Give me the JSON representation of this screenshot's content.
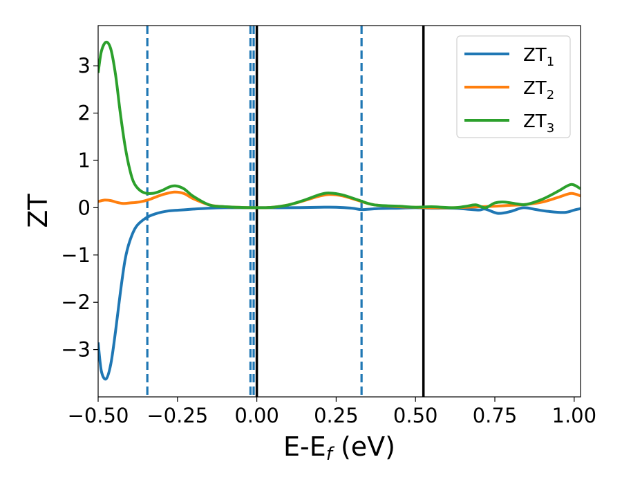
{
  "chart_data": {
    "type": "line",
    "xlabel": {
      "main": "E-E",
      "sub": "f",
      "unit": " (eV)"
    },
    "ylabel": "ZT",
    "xlim": [
      -0.5,
      1.02
    ],
    "ylim": [
      -4.0,
      3.85
    ],
    "x_ticks": [
      {
        "value": -0.5,
        "label": "−0.50"
      },
      {
        "value": -0.25,
        "label": "−0.25"
      },
      {
        "value": 0.0,
        "label": "0.00"
      },
      {
        "value": 0.25,
        "label": "0.25"
      },
      {
        "value": 0.5,
        "label": "0.50"
      },
      {
        "value": 0.75,
        "label": "0.75"
      },
      {
        "value": 1.0,
        "label": "1.00"
      }
    ],
    "y_ticks": [
      {
        "value": -3,
        "label": "−3"
      },
      {
        "value": -2,
        "label": "−2"
      },
      {
        "value": -1,
        "label": "−1"
      },
      {
        "value": 0,
        "label": "0"
      },
      {
        "value": 1,
        "label": "1"
      },
      {
        "value": 2,
        "label": "2"
      },
      {
        "value": 3,
        "label": "3"
      }
    ],
    "grid": false,
    "legend_position": "top-right",
    "vlines": [
      {
        "x": -0.345,
        "style": "dashed",
        "color": "#1f77b4"
      },
      {
        "x": -0.02,
        "style": "dashed",
        "color": "#1f77b4"
      },
      {
        "x": -0.01,
        "style": "dashed",
        "color": "#1f77b4"
      },
      {
        "x": 0.33,
        "style": "dashed",
        "color": "#1f77b4"
      },
      {
        "x": 0.0,
        "style": "solid",
        "color": "#000000"
      },
      {
        "x": 0.525,
        "style": "solid",
        "color": "#000000"
      }
    ],
    "series": [
      {
        "name": "ZT",
        "sub": "1",
        "color": "#1f77b4",
        "points": [
          [
            -0.5,
            -2.85
          ],
          [
            -0.49,
            -3.45
          ],
          [
            -0.475,
            -3.62
          ],
          [
            -0.46,
            -3.3
          ],
          [
            -0.445,
            -2.6
          ],
          [
            -0.43,
            -1.8
          ],
          [
            -0.415,
            -1.1
          ],
          [
            -0.4,
            -0.7
          ],
          [
            -0.38,
            -0.4
          ],
          [
            -0.35,
            -0.22
          ],
          [
            -0.32,
            -0.13
          ],
          [
            -0.28,
            -0.07
          ],
          [
            -0.24,
            -0.05
          ],
          [
            -0.2,
            -0.03
          ],
          [
            -0.15,
            -0.01
          ],
          [
            -0.1,
            0.0
          ],
          [
            0.0,
            0.0
          ],
          [
            0.1,
            0.0
          ],
          [
            0.2,
            0.01
          ],
          [
            0.25,
            0.01
          ],
          [
            0.3,
            -0.01
          ],
          [
            0.33,
            -0.04
          ],
          [
            0.38,
            -0.02
          ],
          [
            0.45,
            -0.01
          ],
          [
            0.5,
            0.0
          ],
          [
            0.55,
            -0.01
          ],
          [
            0.62,
            -0.01
          ],
          [
            0.66,
            -0.03
          ],
          [
            0.7,
            -0.05
          ],
          [
            0.72,
            -0.03
          ],
          [
            0.76,
            -0.12
          ],
          [
            0.8,
            -0.08
          ],
          [
            0.84,
            0.0
          ],
          [
            0.88,
            -0.04
          ],
          [
            0.92,
            -0.08
          ],
          [
            0.97,
            -0.1
          ],
          [
            1.0,
            -0.05
          ],
          [
            1.02,
            -0.02
          ]
        ]
      },
      {
        "name": "ZT",
        "sub": "2",
        "color": "#ff7f0e",
        "points": [
          [
            -0.5,
            0.13
          ],
          [
            -0.48,
            0.16
          ],
          [
            -0.46,
            0.15
          ],
          [
            -0.44,
            0.11
          ],
          [
            -0.42,
            0.09
          ],
          [
            -0.4,
            0.1
          ],
          [
            -0.37,
            0.12
          ],
          [
            -0.34,
            0.17
          ],
          [
            -0.3,
            0.27
          ],
          [
            -0.26,
            0.33
          ],
          [
            -0.23,
            0.3
          ],
          [
            -0.2,
            0.19
          ],
          [
            -0.15,
            0.06
          ],
          [
            -0.1,
            0.02
          ],
          [
            0.0,
            0.0
          ],
          [
            0.05,
            0.01
          ],
          [
            0.1,
            0.06
          ],
          [
            0.15,
            0.15
          ],
          [
            0.2,
            0.25
          ],
          [
            0.23,
            0.28
          ],
          [
            0.27,
            0.25
          ],
          [
            0.32,
            0.15
          ],
          [
            0.37,
            0.06
          ],
          [
            0.45,
            0.02
          ],
          [
            0.5,
            0.01
          ],
          [
            0.55,
            0.0
          ],
          [
            0.62,
            0.0
          ],
          [
            0.7,
            0.02
          ],
          [
            0.75,
            0.03
          ],
          [
            0.8,
            0.05
          ],
          [
            0.85,
            0.07
          ],
          [
            0.9,
            0.12
          ],
          [
            0.95,
            0.22
          ],
          [
            0.99,
            0.3
          ],
          [
            1.02,
            0.25
          ]
        ]
      },
      {
        "name": "ZT",
        "sub": "3",
        "color": "#2ca02c",
        "points": [
          [
            -0.5,
            2.85
          ],
          [
            -0.49,
            3.3
          ],
          [
            -0.475,
            3.5
          ],
          [
            -0.46,
            3.35
          ],
          [
            -0.445,
            2.8
          ],
          [
            -0.43,
            2.0
          ],
          [
            -0.415,
            1.3
          ],
          [
            -0.4,
            0.8
          ],
          [
            -0.385,
            0.5
          ],
          [
            -0.36,
            0.33
          ],
          [
            -0.33,
            0.3
          ],
          [
            -0.3,
            0.36
          ],
          [
            -0.275,
            0.44
          ],
          [
            -0.255,
            0.46
          ],
          [
            -0.23,
            0.4
          ],
          [
            -0.2,
            0.24
          ],
          [
            -0.15,
            0.06
          ],
          [
            -0.1,
            0.02
          ],
          [
            0.0,
            0.0
          ],
          [
            0.05,
            0.01
          ],
          [
            0.1,
            0.06
          ],
          [
            0.15,
            0.16
          ],
          [
            0.2,
            0.28
          ],
          [
            0.23,
            0.31
          ],
          [
            0.27,
            0.27
          ],
          [
            0.32,
            0.16
          ],
          [
            0.37,
            0.06
          ],
          [
            0.45,
            0.03
          ],
          [
            0.5,
            0.01
          ],
          [
            0.55,
            0.02
          ],
          [
            0.62,
            0.0
          ],
          [
            0.66,
            0.03
          ],
          [
            0.69,
            0.06
          ],
          [
            0.72,
            0.0
          ],
          [
            0.75,
            0.1
          ],
          [
            0.78,
            0.12
          ],
          [
            0.82,
            0.08
          ],
          [
            0.85,
            0.07
          ],
          [
            0.9,
            0.18
          ],
          [
            0.95,
            0.35
          ],
          [
            0.99,
            0.49
          ],
          [
            1.02,
            0.4
          ]
        ]
      }
    ]
  }
}
